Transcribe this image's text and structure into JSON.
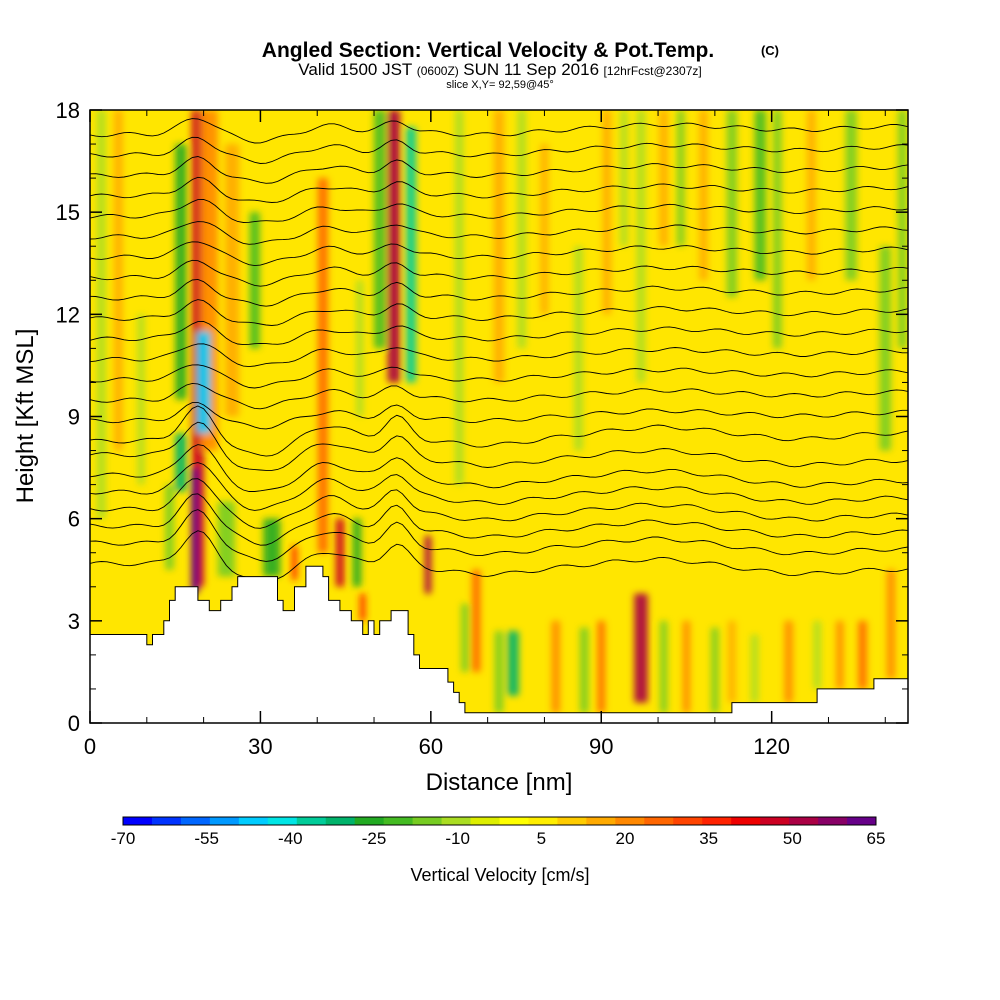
{
  "chart_data": {
    "type": "heatmap",
    "title": "Angled Section: Vertical Velocity & Pot.Temp.",
    "title_mark": "(C)",
    "subtitle_main": "Valid 1500 JST",
    "subtitle_utc": "(0600Z)",
    "subtitle_date": "SUN 11 Sep 2016",
    "subtitle_fcst": "[12hrFcst@2307z]",
    "slice_label": "slice X,Y= 92,59@45°",
    "xlabel": "Distance [nm]",
    "ylabel": "Height [Kft MSL]",
    "xlim": [
      0,
      144
    ],
    "ylim": [
      0,
      18
    ],
    "x_ticks": [
      0,
      30,
      60,
      90,
      120
    ],
    "y_ticks": [
      0,
      3,
      6,
      9,
      12,
      15,
      18
    ],
    "grid": false,
    "colorbar": {
      "label": "Vertical Velocity [cm/s]",
      "placement": "bottom",
      "ticks": [
        "-70",
        "-55",
        "-40",
        "-25",
        "-10",
        "5",
        "20",
        "35",
        "50",
        "65"
      ],
      "min": -70,
      "max": 65,
      "colors": [
        "#0000ff",
        "#0033ff",
        "#0066ff",
        "#0099ff",
        "#00ccff",
        "#00e5e5",
        "#00cc99",
        "#00b36b",
        "#22aa22",
        "#44bb22",
        "#77cc22",
        "#aadd22",
        "#ddee00",
        "#ffff00",
        "#ffee00",
        "#ffcc00",
        "#ffaa00",
        "#ff8800",
        "#ff6600",
        "#ff4400",
        "#ff2200",
        "#ee0000",
        "#cc0022",
        "#aa0044",
        "#880066",
        "#660088"
      ]
    },
    "terrain_profile": [
      [
        0,
        2.6
      ],
      [
        10,
        2.6
      ],
      [
        10,
        2.3
      ],
      [
        11,
        2.3
      ],
      [
        11,
        2.6
      ],
      [
        13,
        2.6
      ],
      [
        13,
        3.0
      ],
      [
        14,
        3.0
      ],
      [
        14,
        3.6
      ],
      [
        15,
        3.6
      ],
      [
        15,
        4.0
      ],
      [
        19,
        4.0
      ],
      [
        19,
        3.6
      ],
      [
        21,
        3.6
      ],
      [
        21,
        3.3
      ],
      [
        23,
        3.3
      ],
      [
        23,
        3.6
      ],
      [
        25,
        3.6
      ],
      [
        25,
        4.0
      ],
      [
        26,
        4.0
      ],
      [
        26,
        4.3
      ],
      [
        33,
        4.3
      ],
      [
        33,
        3.6
      ],
      [
        34,
        3.6
      ],
      [
        34,
        3.3
      ],
      [
        36,
        3.3
      ],
      [
        36,
        4.0
      ],
      [
        38,
        4.0
      ],
      [
        38,
        4.6
      ],
      [
        41,
        4.6
      ],
      [
        41,
        4.3
      ],
      [
        42,
        4.3
      ],
      [
        42,
        3.6
      ],
      [
        44,
        3.6
      ],
      [
        44,
        3.3
      ],
      [
        46,
        3.3
      ],
      [
        46,
        3.0
      ],
      [
        48,
        3.0
      ],
      [
        48,
        2.6
      ],
      [
        49,
        2.6
      ],
      [
        49,
        3.0
      ],
      [
        50,
        3.0
      ],
      [
        50,
        2.6
      ],
      [
        51,
        2.6
      ],
      [
        51,
        3.0
      ],
      [
        53,
        3.0
      ],
      [
        53,
        3.3
      ],
      [
        56,
        3.3
      ],
      [
        56,
        2.6
      ],
      [
        57,
        2.6
      ],
      [
        57,
        2.0
      ],
      [
        58,
        2.0
      ],
      [
        58,
        1.6
      ],
      [
        63,
        1.6
      ],
      [
        63,
        1.2
      ],
      [
        64,
        1.2
      ],
      [
        64,
        0.9
      ],
      [
        65,
        0.9
      ],
      [
        65,
        0.6
      ],
      [
        66,
        0.6
      ],
      [
        66,
        0.3
      ],
      [
        113,
        0.3
      ],
      [
        113,
        0.6
      ],
      [
        128,
        0.6
      ],
      [
        128,
        1.0
      ],
      [
        138,
        1.0
      ],
      [
        138,
        1.3
      ],
      [
        144,
        1.3
      ]
    ],
    "series": [
      {
        "name": "Vertical Velocity",
        "cells": [
          {
            "x": 19,
            "y0": 4.0,
            "y1": 18,
            "w": 2.2,
            "value": 48
          },
          {
            "x": 18.5,
            "y0": 3.8,
            "y1": 7.5,
            "w": 1.4,
            "value": 62
          },
          {
            "x": 21,
            "y0": 8,
            "y1": 18,
            "w": 3,
            "value": 22
          },
          {
            "x": 25,
            "y0": 9,
            "y1": 17,
            "w": 2.5,
            "value": 18
          },
          {
            "x": 16,
            "y0": 9.5,
            "y1": 17,
            "w": 2,
            "value": -25
          },
          {
            "x": 20,
            "y0": 8.5,
            "y1": 11.5,
            "w": 2.5,
            "value": -45
          },
          {
            "x": 16,
            "y0": 6.8,
            "y1": 8.5,
            "w": 2,
            "value": -30
          },
          {
            "x": 14,
            "y0": 4.5,
            "y1": 7,
            "w": 1.5,
            "value": -15
          },
          {
            "x": 24,
            "y0": 4.3,
            "y1": 6.5,
            "w": 3,
            "value": -18
          },
          {
            "x": 32,
            "y0": 4.3,
            "y1": 6,
            "w": 3,
            "value": -25
          },
          {
            "x": 29,
            "y0": 11,
            "y1": 15,
            "w": 1.8,
            "value": -20
          },
          {
            "x": 36,
            "y0": 4.2,
            "y1": 5.2,
            "w": 1,
            "value": 35
          },
          {
            "x": 41,
            "y0": 5,
            "y1": 16,
            "w": 1.8,
            "value": 25
          },
          {
            "x": 44,
            "y0": 4.0,
            "y1": 6,
            "w": 1.5,
            "value": 45
          },
          {
            "x": 47,
            "y0": 4,
            "y1": 6,
            "w": 1.5,
            "value": -25
          },
          {
            "x": 48,
            "y0": 3,
            "y1": 3.8,
            "w": 1,
            "value": 35
          },
          {
            "x": 53.5,
            "y0": 10,
            "y1": 18,
            "w": 2.2,
            "value": 52
          },
          {
            "x": 56.5,
            "y0": 10,
            "y1": 17.5,
            "w": 1.8,
            "value": -35
          },
          {
            "x": 51,
            "y0": 11,
            "y1": 18,
            "w": 2,
            "value": -20
          },
          {
            "x": 59.5,
            "y0": 3.8,
            "y1": 5.5,
            "w": 1.2,
            "value": 50
          },
          {
            "x": 47.5,
            "y0": 9,
            "y1": 13,
            "w": 1.2,
            "value": -12
          },
          {
            "x": 68,
            "y0": 1.5,
            "y1": 4.5,
            "w": 1.5,
            "value": 28
          },
          {
            "x": 66,
            "y0": 1.5,
            "y1": 3.5,
            "w": 1.3,
            "value": -15
          },
          {
            "x": 72,
            "y0": 0.3,
            "y1": 2.7,
            "w": 1.5,
            "value": -18
          },
          {
            "x": 74.5,
            "y0": 0.8,
            "y1": 2.7,
            "w": 2,
            "value": -30
          },
          {
            "x": 82,
            "y0": 0.3,
            "y1": 3,
            "w": 1.5,
            "value": 22
          },
          {
            "x": 87,
            "y0": 0.3,
            "y1": 2.8,
            "w": 1.5,
            "value": -18
          },
          {
            "x": 90,
            "y0": 0.3,
            "y1": 3,
            "w": 1.3,
            "value": 24
          },
          {
            "x": 97,
            "y0": 0.6,
            "y1": 3.8,
            "w": 2.4,
            "value": 52
          },
          {
            "x": 101,
            "y0": 0.3,
            "y1": 3,
            "w": 1.3,
            "value": -15
          },
          {
            "x": 105,
            "y0": 0.3,
            "y1": 3,
            "w": 1.3,
            "value": 20
          },
          {
            "x": 110,
            "y0": 0.3,
            "y1": 2.8,
            "w": 1.3,
            "value": -15
          },
          {
            "x": 113,
            "y0": 0.6,
            "y1": 3,
            "w": 1.3,
            "value": 18
          },
          {
            "x": 117,
            "y0": 0.6,
            "y1": 2.6,
            "w": 1.3,
            "value": -12
          },
          {
            "x": 123,
            "y0": 0.6,
            "y1": 3,
            "w": 1.5,
            "value": 22
          },
          {
            "x": 128,
            "y0": 1,
            "y1": 3,
            "w": 1.3,
            "value": -10
          },
          {
            "x": 132,
            "y0": 1,
            "y1": 3,
            "w": 1.3,
            "value": 20
          },
          {
            "x": 136,
            "y0": 1,
            "y1": 3,
            "w": 1.5,
            "value": 24
          },
          {
            "x": 141,
            "y0": 1.3,
            "y1": 4.5,
            "w": 1.5,
            "value": 20
          },
          {
            "x": 65,
            "y0": 7,
            "y1": 18,
            "w": 1.5,
            "value": -10
          },
          {
            "x": 72,
            "y0": 10,
            "y1": 18,
            "w": 1.8,
            "value": 18
          },
          {
            "x": 76,
            "y0": 11,
            "y1": 18,
            "w": 1.5,
            "value": -12
          },
          {
            "x": 80,
            "y0": 12,
            "y1": 17,
            "w": 1.3,
            "value": 15
          },
          {
            "x": 86,
            "y0": 8,
            "y1": 14,
            "w": 1.5,
            "value": -10
          },
          {
            "x": 91,
            "y0": 12,
            "y1": 18,
            "w": 1.5,
            "value": 15
          },
          {
            "x": 94,
            "y0": 14,
            "y1": 18,
            "w": 1.3,
            "value": -8
          },
          {
            "x": 97,
            "y0": 10,
            "y1": 18,
            "w": 1.5,
            "value": -12
          },
          {
            "x": 101,
            "y0": 14,
            "y1": 18,
            "w": 1.5,
            "value": 15
          },
          {
            "x": 104,
            "y0": 14,
            "y1": 18,
            "w": 1.3,
            "value": -15
          },
          {
            "x": 108,
            "y0": 13,
            "y1": 18,
            "w": 1.5,
            "value": 18
          },
          {
            "x": 113,
            "y0": 12.5,
            "y1": 18,
            "w": 1.8,
            "value": -15
          },
          {
            "x": 118,
            "y0": 13,
            "y1": 18,
            "w": 2,
            "value": -22
          },
          {
            "x": 121,
            "y0": 11,
            "y1": 18,
            "w": 1.5,
            "value": -18
          },
          {
            "x": 127,
            "y0": 13,
            "y1": 18,
            "w": 1.5,
            "value": 18
          },
          {
            "x": 134,
            "y0": 13,
            "y1": 18,
            "w": 2,
            "value": -18
          },
          {
            "x": 140,
            "y0": 8,
            "y1": 14,
            "w": 2,
            "value": -15
          },
          {
            "x": 143,
            "y0": 11,
            "y1": 18,
            "w": 1.5,
            "value": -15
          },
          {
            "x": 2,
            "y0": 6,
            "y1": 18,
            "w": 1.5,
            "value": -10
          },
          {
            "x": 5,
            "y0": 8,
            "y1": 18,
            "w": 1.5,
            "value": 18
          },
          {
            "x": 9,
            "y0": 7,
            "y1": 12,
            "w": 1.2,
            "value": -8
          }
        ]
      },
      {
        "name": "Pot.Temp.",
        "isentropes": [
          {
            "label": "",
            "base": 4.6
          },
          {
            "label": "",
            "base": 5.2
          },
          {
            "label": "",
            "base": 5.7
          },
          {
            "label": "",
            "base": 6.2
          },
          {
            "label": "",
            "base": 6.7
          },
          {
            "label": "",
            "base": 7.2
          },
          {
            "label": "",
            "base": 7.8
          },
          {
            "label": "",
            "base": 8.4
          },
          {
            "label": "",
            "base": 9.0
          },
          {
            "label": "",
            "base": 9.6
          },
          {
            "label": "",
            "base": 10.2
          },
          {
            "label": "",
            "base": 10.8
          },
          {
            "label": "",
            "base": 11.4
          },
          {
            "label": "",
            "base": 12.0
          },
          {
            "label": "",
            "base": 12.6
          },
          {
            "label": "",
            "base": 13.2
          },
          {
            "label": "",
            "base": 13.8
          },
          {
            "label": "",
            "base": 14.4
          },
          {
            "label": "",
            "base": 15.0
          },
          {
            "label": "",
            "base": 15.6
          },
          {
            "label": "",
            "base": 16.2
          },
          {
            "label": "",
            "base": 16.8
          },
          {
            "label": "",
            "base": 17.4
          }
        ]
      }
    ]
  }
}
